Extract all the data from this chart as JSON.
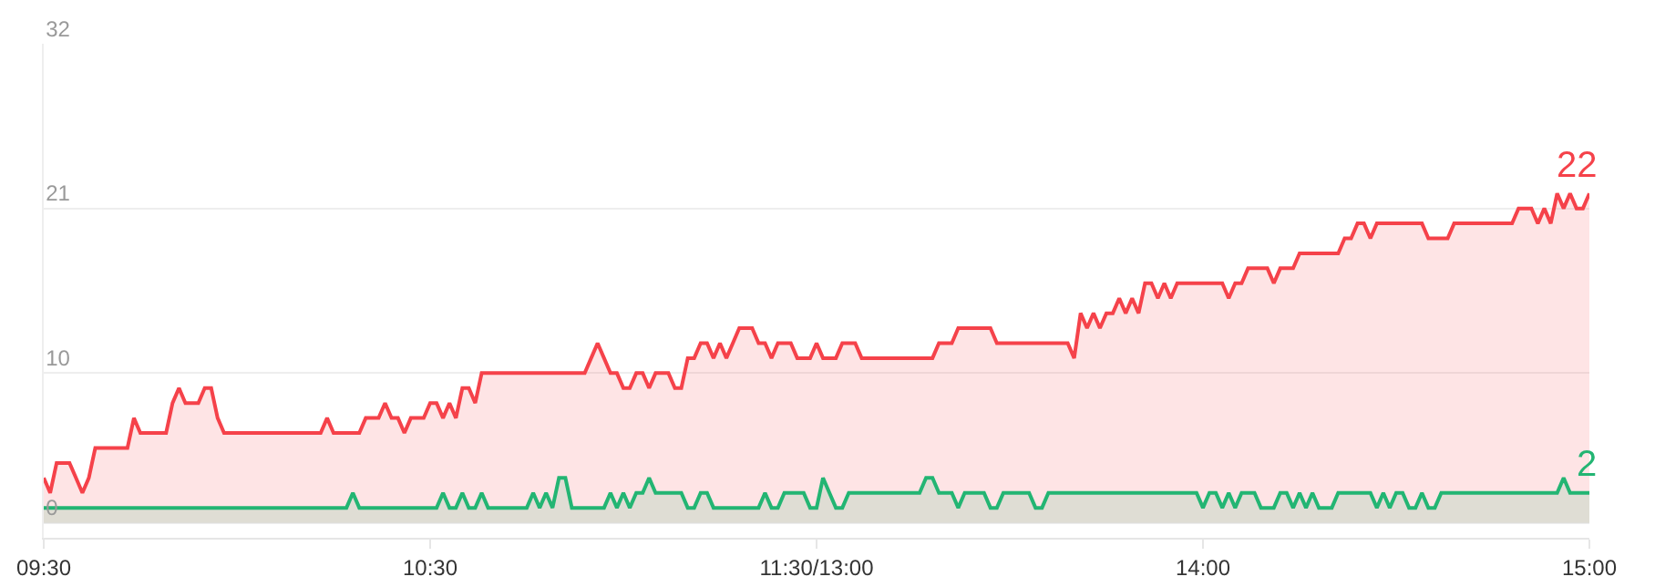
{
  "chart_data": {
    "type": "area",
    "ylim": [
      -1,
      32
    ],
    "yticks": [
      0,
      10,
      21,
      32
    ],
    "grid": "y",
    "marker": "none",
    "line_style": "solid",
    "categories": [
      "09:30",
      null,
      null,
      null,
      null,
      null,
      null,
      null,
      null,
      null,
      null,
      null,
      null,
      null,
      null,
      null,
      null,
      null,
      null,
      null,
      null,
      null,
      null,
      null,
      null,
      null,
      null,
      null,
      null,
      null,
      null,
      null,
      null,
      null,
      null,
      null,
      null,
      null,
      null,
      null,
      null,
      null,
      null,
      null,
      null,
      null,
      null,
      null,
      null,
      null,
      null,
      null,
      null,
      null,
      null,
      null,
      null,
      null,
      null,
      null,
      "10:30",
      null,
      null,
      null,
      null,
      null,
      null,
      null,
      null,
      null,
      null,
      null,
      null,
      null,
      null,
      null,
      null,
      null,
      null,
      null,
      null,
      null,
      null,
      null,
      null,
      null,
      null,
      null,
      null,
      null,
      null,
      null,
      null,
      null,
      null,
      null,
      null,
      null,
      null,
      null,
      null,
      null,
      null,
      null,
      null,
      null,
      null,
      null,
      null,
      null,
      null,
      null,
      null,
      null,
      null,
      null,
      null,
      null,
      null,
      null,
      "11:30/13:00",
      null,
      null,
      null,
      null,
      null,
      null,
      null,
      null,
      null,
      null,
      null,
      null,
      null,
      null,
      null,
      null,
      null,
      null,
      null,
      null,
      null,
      null,
      null,
      null,
      null,
      null,
      null,
      null,
      null,
      null,
      null,
      null,
      null,
      null,
      null,
      null,
      null,
      null,
      null,
      null,
      null,
      null,
      null,
      null,
      null,
      null,
      null,
      null,
      null,
      null,
      null,
      null,
      null,
      null,
      null,
      null,
      null,
      null,
      null,
      "14:00",
      null,
      null,
      null,
      null,
      null,
      null,
      null,
      null,
      null,
      null,
      null,
      null,
      null,
      null,
      null,
      null,
      null,
      null,
      null,
      null,
      null,
      null,
      null,
      null,
      null,
      null,
      null,
      null,
      null,
      null,
      null,
      null,
      null,
      null,
      null,
      null,
      null,
      null,
      null,
      null,
      null,
      null,
      null,
      null,
      null,
      null,
      null,
      null,
      null,
      null,
      null,
      null,
      null,
      null,
      null,
      null,
      null,
      null,
      null,
      "15:00"
    ],
    "series": [
      {
        "color": "#f5424a",
        "values": [
          3,
          2,
          4,
          4,
          4,
          3,
          2,
          3,
          5,
          5,
          5,
          5,
          5,
          5,
          7,
          6,
          6,
          6,
          6,
          6,
          8,
          9,
          8,
          8,
          8,
          9,
          9,
          7,
          6,
          6,
          6,
          6,
          6,
          6,
          6,
          6,
          6,
          6,
          6,
          6,
          6,
          6,
          6,
          6,
          7,
          6,
          6,
          6,
          6,
          6,
          7,
          7,
          7,
          8,
          7,
          7,
          6,
          7,
          7,
          7,
          8,
          8,
          7,
          8,
          7,
          9,
          9,
          8,
          10,
          10,
          10,
          10,
          10,
          10,
          10,
          10,
          10,
          10,
          10,
          10,
          10,
          10,
          10,
          10,
          10,
          11,
          12,
          11,
          10,
          10,
          9,
          9,
          10,
          10,
          9,
          10,
          10,
          10,
          9,
          9,
          11,
          11,
          12,
          12,
          11,
          12,
          11,
          12,
          13,
          13,
          13,
          12,
          12,
          11,
          12,
          12,
          12,
          11,
          11,
          11,
          12,
          11,
          11,
          11,
          12,
          12,
          12,
          11,
          11,
          11,
          11,
          11,
          11,
          11,
          11,
          11,
          11,
          11,
          11,
          12,
          12,
          12,
          13,
          13,
          13,
          13,
          13,
          13,
          12,
          12,
          12,
          12,
          12,
          12,
          12,
          12,
          12,
          12,
          12,
          12,
          11,
          14,
          13,
          14,
          13,
          14,
          14,
          15,
          14,
          15,
          14,
          16,
          16,
          15,
          16,
          15,
          16,
          16,
          16,
          16,
          16,
          16,
          16,
          16,
          15,
          16,
          16,
          17,
          17,
          17,
          17,
          16,
          17,
          17,
          17,
          18,
          18,
          18,
          18,
          18,
          18,
          18,
          19,
          19,
          20,
          20,
          19,
          20,
          20,
          20,
          20,
          20,
          20,
          20,
          20,
          19,
          19,
          19,
          19,
          20,
          20,
          20,
          20,
          20,
          20,
          20,
          20,
          20,
          20,
          21,
          21,
          21,
          20,
          21,
          20,
          22,
          21,
          22,
          21,
          21,
          22
        ],
        "value_labels": [
          null,
          null,
          null,
          null,
          null,
          null,
          null,
          null,
          null,
          null,
          null,
          null,
          null,
          null,
          null,
          null,
          null,
          null,
          null,
          null,
          null,
          null,
          null,
          null,
          null,
          null,
          null,
          null,
          null,
          null,
          null,
          null,
          null,
          null,
          null,
          null,
          null,
          null,
          null,
          null,
          null,
          null,
          null,
          null,
          null,
          null,
          null,
          null,
          null,
          null,
          null,
          null,
          null,
          null,
          null,
          null,
          null,
          null,
          null,
          null,
          null,
          null,
          null,
          null,
          null,
          null,
          null,
          null,
          null,
          null,
          null,
          null,
          null,
          null,
          null,
          null,
          null,
          null,
          null,
          null,
          null,
          null,
          null,
          null,
          null,
          null,
          null,
          null,
          null,
          null,
          null,
          null,
          null,
          null,
          null,
          null,
          null,
          null,
          null,
          null,
          null,
          null,
          null,
          null,
          null,
          null,
          null,
          null,
          null,
          null,
          null,
          null,
          null,
          null,
          null,
          null,
          null,
          null,
          null,
          null,
          null,
          null,
          null,
          null,
          null,
          null,
          null,
          null,
          null,
          null,
          null,
          null,
          null,
          null,
          null,
          null,
          null,
          null,
          null,
          null,
          null,
          null,
          null,
          null,
          null,
          null,
          null,
          null,
          null,
          null,
          null,
          null,
          null,
          null,
          null,
          null,
          null,
          null,
          null,
          null,
          null,
          null,
          null,
          null,
          null,
          null,
          null,
          null,
          null,
          null,
          null,
          null,
          null,
          null,
          null,
          null,
          null,
          null,
          null,
          null,
          null,
          null,
          null,
          null,
          null,
          null,
          null,
          null,
          null,
          null,
          null,
          null,
          null,
          null,
          null,
          null,
          null,
          null,
          null,
          null,
          null,
          null,
          null,
          null,
          null,
          null,
          null,
          null,
          null,
          null,
          null,
          null,
          null,
          null,
          null,
          null,
          null,
          null,
          null,
          null,
          null,
          null,
          null,
          null,
          null,
          null,
          null,
          null,
          null,
          null,
          null,
          null,
          null,
          null,
          null,
          null,
          null,
          null,
          null,
          null,
          "22"
        ]
      },
      {
        "color": "#23b573",
        "values": [
          1,
          1,
          1,
          1,
          1,
          1,
          1,
          1,
          1,
          1,
          1,
          1,
          1,
          1,
          1,
          1,
          1,
          1,
          1,
          1,
          1,
          1,
          1,
          1,
          1,
          1,
          1,
          1,
          1,
          1,
          1,
          1,
          1,
          1,
          1,
          1,
          1,
          1,
          1,
          1,
          1,
          1,
          1,
          1,
          1,
          1,
          1,
          1,
          2,
          1,
          1,
          1,
          1,
          1,
          1,
          1,
          1,
          1,
          1,
          1,
          1,
          1,
          2,
          1,
          1,
          2,
          1,
          1,
          2,
          1,
          1,
          1,
          1,
          1,
          1,
          1,
          2,
          1,
          2,
          1,
          3,
          3,
          1,
          1,
          1,
          1,
          1,
          1,
          2,
          1,
          2,
          1,
          2,
          2,
          3,
          2,
          2,
          2,
          2,
          2,
          1,
          1,
          2,
          2,
          1,
          1,
          1,
          1,
          1,
          1,
          1,
          1,
          2,
          1,
          1,
          2,
          2,
          2,
          2,
          1,
          1,
          3,
          2,
          1,
          1,
          2,
          2,
          2,
          2,
          2,
          2,
          2,
          2,
          2,
          2,
          2,
          2,
          3,
          3,
          2,
          2,
          2,
          1,
          2,
          2,
          2,
          2,
          1,
          1,
          2,
          2,
          2,
          2,
          2,
          1,
          1,
          2,
          2,
          2,
          2,
          2,
          2,
          2,
          2,
          2,
          2,
          2,
          2,
          2,
          2,
          2,
          2,
          2,
          2,
          2,
          2,
          2,
          2,
          2,
          2,
          1,
          2,
          2,
          1,
          2,
          1,
          2,
          2,
          2,
          1,
          1,
          1,
          2,
          2,
          1,
          2,
          1,
          2,
          1,
          1,
          1,
          2,
          2,
          2,
          2,
          2,
          2,
          1,
          2,
          1,
          2,
          2,
          1,
          1,
          2,
          1,
          1,
          2,
          2,
          2,
          2,
          2,
          2,
          2,
          2,
          2,
          2,
          2,
          2,
          2,
          2,
          2,
          2,
          2,
          2,
          2,
          3,
          2,
          2,
          2,
          2
        ],
        "value_labels": [
          null,
          null,
          null,
          null,
          null,
          null,
          null,
          null,
          null,
          null,
          null,
          null,
          null,
          null,
          null,
          null,
          null,
          null,
          null,
          null,
          null,
          null,
          null,
          null,
          null,
          null,
          null,
          null,
          null,
          null,
          null,
          null,
          null,
          null,
          null,
          null,
          null,
          null,
          null,
          null,
          null,
          null,
          null,
          null,
          null,
          null,
          null,
          null,
          null,
          null,
          null,
          null,
          null,
          null,
          null,
          null,
          null,
          null,
          null,
          null,
          null,
          null,
          null,
          null,
          null,
          null,
          null,
          null,
          null,
          null,
          null,
          null,
          null,
          null,
          null,
          null,
          null,
          null,
          null,
          null,
          null,
          null,
          null,
          null,
          null,
          null,
          null,
          null,
          null,
          null,
          null,
          null,
          null,
          null,
          null,
          null,
          null,
          null,
          null,
          null,
          null,
          null,
          null,
          null,
          null,
          null,
          null,
          null,
          null,
          null,
          null,
          null,
          null,
          null,
          null,
          null,
          null,
          null,
          null,
          null,
          null,
          null,
          null,
          null,
          null,
          null,
          null,
          null,
          null,
          null,
          null,
          null,
          null,
          null,
          null,
          null,
          null,
          null,
          null,
          null,
          null,
          null,
          null,
          null,
          null,
          null,
          null,
          null,
          null,
          null,
          null,
          null,
          null,
          null,
          null,
          null,
          null,
          null,
          null,
          null,
          null,
          null,
          null,
          null,
          null,
          null,
          null,
          null,
          null,
          null,
          null,
          null,
          null,
          null,
          null,
          null,
          null,
          null,
          null,
          null,
          null,
          null,
          null,
          null,
          null,
          null,
          null,
          null,
          null,
          null,
          null,
          null,
          null,
          null,
          null,
          null,
          null,
          null,
          null,
          null,
          null,
          null,
          null,
          null,
          null,
          null,
          null,
          null,
          null,
          null,
          null,
          null,
          null,
          null,
          null,
          null,
          null,
          null,
          null,
          null,
          null,
          null,
          null,
          null,
          null,
          null,
          null,
          null,
          null,
          null,
          null,
          null,
          null,
          null,
          null,
          null,
          null,
          null,
          null,
          null,
          "2"
        ]
      }
    ]
  }
}
